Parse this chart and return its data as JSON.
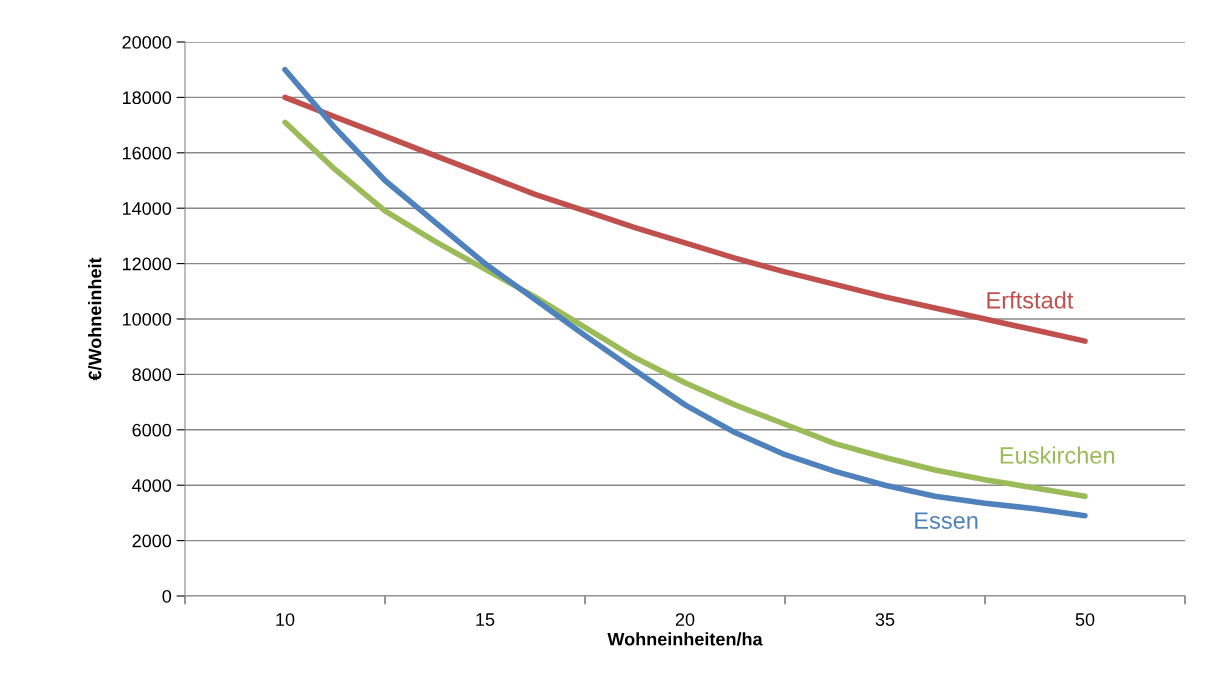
{
  "chart_data": {
    "type": "line",
    "xlabel": "Wohneinheiten/ha",
    "ylabel": "€/Wohneinheit",
    "categories": [
      "10",
      null,
      null,
      null,
      "15",
      null,
      null,
      null,
      "20",
      null,
      null,
      null,
      "35",
      null,
      null,
      null,
      "50"
    ],
    "series": [
      {
        "name": "Erftstadt",
        "color": "#c0504d",
        "values": [
          18000,
          17300,
          16600,
          15900,
          15200,
          14500,
          13900,
          13300,
          12750,
          12200,
          11700,
          11250,
          10800,
          10400,
          10000,
          9600,
          9200
        ]
      },
      {
        "name": "Euskirchen",
        "color": "#9bbb59",
        "values": [
          17100,
          15400,
          13900,
          12800,
          11800,
          10800,
          9700,
          8600,
          7700,
          6900,
          6200,
          5500,
          5000,
          4550,
          4200,
          3900,
          3600
        ]
      },
      {
        "name": "Essen",
        "color": "#4f81bd",
        "values": [
          19000,
          16900,
          15000,
          13500,
          12000,
          10700,
          9400,
          8150,
          6900,
          5900,
          5100,
          4500,
          4000,
          3600,
          3350,
          3150,
          2900
        ]
      }
    ],
    "ylim": [
      0,
      20000
    ],
    "yticks": [
      0,
      2000,
      4000,
      6000,
      8000,
      10000,
      12000,
      14000,
      16000,
      18000,
      20000
    ],
    "grid": "y",
    "legend": false,
    "marker": "none",
    "line_style": "solid"
  }
}
